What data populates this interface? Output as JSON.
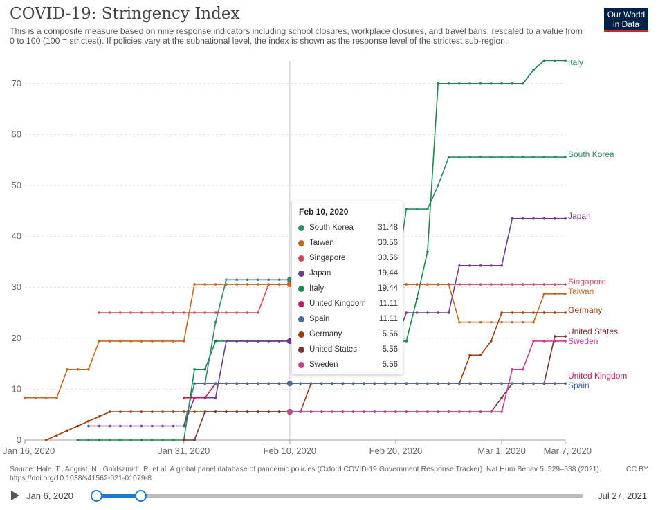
{
  "header": {
    "title": "COVID-19: Stringency Index",
    "subtitle": "This is a composite measure based on nine response indicators including school closures, workplace closures, and travel bans, rescaled to a value from 0 to 100 (100 = strictest). If policies vary at the subnational level, the index is shown as the response level of the strictest sub-region.",
    "logo_line1": "Our World",
    "logo_line2": "in Data"
  },
  "footer": {
    "source": "Source: Hale, T., Angrist, N., Goldszmidt, R. et al. A global panel database of pandemic policies (Oxford COVID-19 Government Response Tracker). Nat Hum Behav 5, 529–538 (2021). https://doi.org/10.1038/s41562-021-01079-8",
    "license": "CC BY"
  },
  "timeline": {
    "start_label": "Jan 6, 2020",
    "end_label": "Jul 27, 2021",
    "play_icon": "play-icon"
  },
  "tooltip": {
    "date": "Feb 10, 2020",
    "rows": [
      {
        "name": "South Korea",
        "value": "31.48",
        "color": "#2e8b6e"
      },
      {
        "name": "Taiwan",
        "value": "30.56",
        "color": "#c8661e"
      },
      {
        "name": "Singapore",
        "value": "30.56",
        "color": "#d9475d"
      },
      {
        "name": "Japan",
        "value": "19.44",
        "color": "#6c3d91"
      },
      {
        "name": "Italy",
        "value": "19.44",
        "color": "#1a8a4a"
      },
      {
        "name": "United Kingdom",
        "value": "11.11",
        "color": "#c8175c"
      },
      {
        "name": "Spain",
        "value": "11.11",
        "color": "#4c6a9c"
      },
      {
        "name": "Germany",
        "value": "5.56",
        "color": "#a13c0b"
      },
      {
        "name": "United States",
        "value": "5.56",
        "color": "#7f2f2f"
      },
      {
        "name": "Sweden",
        "value": "5.56",
        "color": "#cf3b8e"
      }
    ]
  },
  "chart_data": {
    "type": "line",
    "title": "COVID-19: Stringency Index",
    "ylim": [
      0,
      75
    ],
    "yticks": [
      0,
      10,
      20,
      30,
      40,
      50,
      60,
      70
    ],
    "xlim": [
      "2020-01-16",
      "2020-03-07"
    ],
    "xticks": [
      {
        "date": "2020-01-16",
        "label": "Jan 16, 2020"
      },
      {
        "date": "2020-01-31",
        "label": "Jan 31, 2020"
      },
      {
        "date": "2020-02-10",
        "label": "Feb 10, 2020"
      },
      {
        "date": "2020-02-20",
        "label": "Feb 20, 2020"
      },
      {
        "date": "2020-03-01",
        "label": "Mar 1, 2020"
      },
      {
        "date": "2020-03-07",
        "label": "Mar 7, 2020"
      }
    ],
    "grid": true,
    "legend_placement": "end-of-line labels",
    "hover_date": "2020-02-10",
    "series": [
      {
        "name": "Italy",
        "color": "#1a8a4a",
        "label_color": "#1a8a4a",
        "points": [
          [
            "2020-01-21",
            0
          ],
          [
            "2020-01-31",
            0
          ],
          [
            "2020-02-01",
            13.89
          ],
          [
            "2020-02-02",
            13.89
          ],
          [
            "2020-02-03",
            19.44
          ],
          [
            "2020-02-10",
            19.44
          ],
          [
            "2020-02-21",
            19.44
          ],
          [
            "2020-02-22",
            27.78
          ],
          [
            "2020-02-23",
            37.04
          ],
          [
            "2020-02-24",
            70.0
          ],
          [
            "2020-03-03",
            70.0
          ],
          [
            "2020-03-04",
            72.69
          ],
          [
            "2020-03-05",
            74.54
          ],
          [
            "2020-03-07",
            74.54
          ]
        ]
      },
      {
        "name": "South Korea",
        "color": "#2e8b6e",
        "label_color": "#2e8b6e",
        "points": [
          [
            "2020-01-31",
            2.78
          ],
          [
            "2020-02-01",
            11.11
          ],
          [
            "2020-02-02",
            11.11
          ],
          [
            "2020-02-03",
            23.15
          ],
          [
            "2020-02-04",
            31.48
          ],
          [
            "2020-02-10",
            31.48
          ],
          [
            "2020-02-20",
            31.48
          ],
          [
            "2020-02-21",
            45.37
          ],
          [
            "2020-02-22",
            45.37
          ],
          [
            "2020-02-23",
            45.37
          ],
          [
            "2020-02-24",
            50.0
          ],
          [
            "2020-02-25",
            55.56
          ],
          [
            "2020-03-07",
            55.56
          ]
        ]
      },
      {
        "name": "Japan",
        "color": "#6c3d91",
        "label_color": "#6c3d91",
        "points": [
          [
            "2020-01-22",
            2.78
          ],
          [
            "2020-01-31",
            2.78
          ],
          [
            "2020-02-01",
            8.33
          ],
          [
            "2020-02-02",
            8.33
          ],
          [
            "2020-02-03",
            8.33
          ],
          [
            "2020-02-04",
            19.44
          ],
          [
            "2020-02-10",
            19.44
          ],
          [
            "2020-02-20",
            19.44
          ],
          [
            "2020-02-21",
            25.0
          ],
          [
            "2020-02-25",
            25.0
          ],
          [
            "2020-02-26",
            34.26
          ],
          [
            "2020-03-01",
            34.26
          ],
          [
            "2020-03-02",
            43.52
          ],
          [
            "2020-03-07",
            43.52
          ]
        ]
      },
      {
        "name": "Singapore",
        "color": "#d9475d",
        "label_color": "#d9475d",
        "points": [
          [
            "2020-01-23",
            25.0
          ],
          [
            "2020-02-07",
            25.0
          ],
          [
            "2020-02-08",
            30.56
          ],
          [
            "2020-02-10",
            30.56
          ],
          [
            "2020-03-07",
            30.56
          ]
        ]
      },
      {
        "name": "Taiwan",
        "color": "#c8661e",
        "label_color": "#c8661e",
        "points": [
          [
            "2020-01-16",
            8.33
          ],
          [
            "2020-01-19",
            8.33
          ],
          [
            "2020-01-20",
            13.89
          ],
          [
            "2020-01-22",
            13.89
          ],
          [
            "2020-01-23",
            19.44
          ],
          [
            "2020-01-31",
            19.44
          ],
          [
            "2020-02-01",
            30.56
          ],
          [
            "2020-02-10",
            30.56
          ],
          [
            "2020-02-25",
            30.56
          ],
          [
            "2020-02-26",
            23.15
          ],
          [
            "2020-03-04",
            23.15
          ],
          [
            "2020-03-05",
            28.7
          ],
          [
            "2020-03-07",
            28.7
          ]
        ]
      },
      {
        "name": "Germany",
        "color": "#a13c0b",
        "label_color": "#a13c0b",
        "points": [
          [
            "2020-01-18",
            0
          ],
          [
            "2020-01-24",
            5.56
          ],
          [
            "2020-02-10",
            5.56
          ],
          [
            "2020-02-11",
            5.56
          ],
          [
            "2020-02-12",
            11.11
          ],
          [
            "2020-02-26",
            11.11
          ],
          [
            "2020-02-27",
            16.67
          ],
          [
            "2020-02-28",
            16.67
          ],
          [
            "2020-02-29",
            19.44
          ],
          [
            "2020-03-01",
            25.0
          ],
          [
            "2020-03-07",
            25.0
          ]
        ]
      },
      {
        "name": "United States",
        "color": "#7f2f2f",
        "label_color": "#7f2f2f",
        "points": [
          [
            "2020-01-31",
            0
          ],
          [
            "2020-02-01",
            0
          ],
          [
            "2020-02-02",
            5.56
          ],
          [
            "2020-02-10",
            5.56
          ],
          [
            "2020-02-29",
            5.56
          ],
          [
            "2020-03-01",
            8.33
          ],
          [
            "2020-03-02",
            11.11
          ],
          [
            "2020-03-05",
            11.11
          ],
          [
            "2020-03-06",
            20.37
          ],
          [
            "2020-03-07",
            20.37
          ]
        ]
      },
      {
        "name": "Sweden",
        "color": "#cf3b8e",
        "label_color": "#cf3b8e",
        "points": [
          [
            "2020-02-10",
            5.56
          ],
          [
            "2020-03-01",
            5.56
          ],
          [
            "2020-03-02",
            13.89
          ],
          [
            "2020-03-03",
            13.89
          ],
          [
            "2020-03-04",
            19.44
          ],
          [
            "2020-03-07",
            19.44
          ]
        ]
      },
      {
        "name": "United Kingdom",
        "color": "#c8175c",
        "label_color": "#c8175c",
        "points": [
          [
            "2020-01-31",
            8.33
          ],
          [
            "2020-02-02",
            8.33
          ],
          [
            "2020-02-03",
            11.11
          ],
          [
            "2020-02-10",
            11.11
          ],
          [
            "2020-03-07",
            11.11
          ]
        ]
      },
      {
        "name": "Spain",
        "color": "#4c6a9c",
        "label_color": "#4c6a9c",
        "points": [
          [
            "2020-02-01",
            11.11
          ],
          [
            "2020-02-10",
            11.11
          ],
          [
            "2020-03-07",
            11.11
          ]
        ]
      }
    ]
  }
}
